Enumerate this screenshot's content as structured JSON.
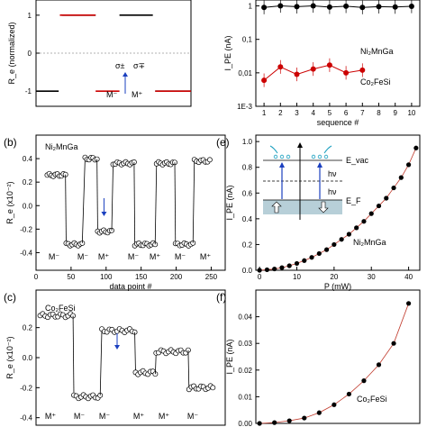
{
  "chart_data": [
    {
      "panel": "",
      "type": "line",
      "ylabel": "R_e (normalized)",
      "ylim": [
        -1.4,
        1.4
      ],
      "yticks": [
        "1",
        "0",
        "-1"
      ],
      "series": [
        {
          "color": "#000000",
          "segments": [
            [
              0,
              0.19,
              -1
            ],
            [
              0.22,
              0.5,
              1
            ],
            [
              0.7,
              0.98,
              1
            ],
            [
              1.0,
              1.3,
              -1
            ]
          ]
        },
        {
          "color": "#cc0000",
          "segments": [
            [
              0.2,
              0.5,
              1
            ],
            [
              0.5,
              0.7,
              -1
            ],
            [
              1.0,
              1.3,
              -1
            ]
          ]
        }
      ],
      "annotations": {
        "sigma_left": "σ±",
        "sigma_right": "σ∓",
        "m_minus": "M⁻",
        "m_plus": "M⁺"
      }
    },
    {
      "panel": "",
      "type": "scatter",
      "xlabel": "sequence #",
      "ylabel": "I_PE (nA)",
      "yscale": "log",
      "ylim": [
        0.001,
        1.5
      ],
      "yticks": [
        "1",
        "0,1",
        "0,01",
        "1E-3"
      ],
      "xticks": [
        "1",
        "2",
        "3",
        "4",
        "5",
        "6",
        "7",
        "8",
        "9",
        "10"
      ],
      "series": [
        {
          "name": "Ni₂MnGa",
          "color": "#000000",
          "x": [
            1,
            2,
            3,
            4,
            5,
            6,
            7,
            8,
            9,
            10
          ],
          "y": [
            0.9,
            1.0,
            0.95,
            1.0,
            0.92,
            0.98,
            0.9,
            0.95,
            0.93,
            0.97
          ]
        },
        {
          "name": "Co₂FeSi",
          "color": "#cc0000",
          "x": [
            1,
            2,
            3,
            4,
            5,
            6,
            7
          ],
          "y": [
            0.006,
            0.015,
            0.009,
            0.013,
            0.017,
            0.01,
            0.012
          ]
        }
      ]
    },
    {
      "panel": "(b)",
      "type": "scatter",
      "title": "Ni₂MnGa",
      "xlabel": "data point #",
      "ylabel": "R_e (x10⁻²)",
      "xlim": [
        0,
        270
      ],
      "ylim": [
        -0.55,
        0.6
      ],
      "xticks": [
        "0",
        "50",
        "100",
        "150",
        "200",
        "250"
      ],
      "yticks": [
        "0.4",
        "0.2",
        "0.0",
        "-0.2",
        "-0.4"
      ],
      "states": [
        "M⁻",
        "M⁻",
        "M⁺",
        "M⁻",
        "M⁺",
        "M⁻",
        "M⁺"
      ],
      "levels": [
        {
          "x0": 16,
          "x1": 42,
          "y": 0.26
        },
        {
          "x0": 43,
          "x1": 66,
          "y": -0.33
        },
        {
          "x0": 70,
          "x1": 87,
          "y": 0.4
        },
        {
          "x0": 88,
          "x1": 108,
          "y": -0.22
        },
        {
          "x0": 110,
          "x1": 140,
          "y": 0.36
        },
        {
          "x0": 141,
          "x1": 170,
          "y": -0.33
        },
        {
          "x0": 172,
          "x1": 198,
          "y": 0.36
        },
        {
          "x0": 199,
          "x1": 224,
          "y": -0.33
        },
        {
          "x0": 226,
          "x1": 248,
          "y": 0.38
        }
      ]
    },
    {
      "panel": "(c)",
      "type": "scatter",
      "title": "Co₂FeSi",
      "ylabel": "R_e (x10⁻²)",
      "ylim": [
        -0.45,
        0.45
      ],
      "yticks": [
        "0.2",
        "0.0",
        "-0.2",
        "-0.4"
      ],
      "states": [
        "M⁺",
        "M⁻",
        "M⁻",
        "M⁺",
        "M⁺",
        "M⁻"
      ],
      "levels": [
        {
          "x0": 5,
          "x1": 45,
          "y": 0.28
        },
        {
          "x0": 46,
          "x1": 78,
          "y": -0.26
        },
        {
          "x0": 80,
          "x1": 120,
          "y": 0.18
        },
        {
          "x0": 121,
          "x1": 145,
          "y": -0.1
        },
        {
          "x0": 146,
          "x1": 185,
          "y": 0.04
        },
        {
          "x0": 186,
          "x1": 215,
          "y": -0.2
        }
      ]
    },
    {
      "panel": "(e)",
      "type": "scatter",
      "xlabel": "P (mW)",
      "ylabel": "I_PE (nA)",
      "xlim": [
        -1,
        43
      ],
      "ylim": [
        0,
        1.05
      ],
      "xticks": [
        "0",
        "10",
        "20",
        "30",
        "40"
      ],
      "yticks": [
        "0.0",
        "0.2",
        "0.4",
        "0.6",
        "0.8",
        "1.0"
      ],
      "series": [
        {
          "name": "Ni₂MnGa",
          "color": "#000000",
          "x": [
            0,
            2,
            4,
            6,
            8,
            10,
            12,
            14,
            16,
            18,
            20,
            22,
            24,
            26,
            28,
            30,
            32,
            34,
            36,
            38,
            40,
            42
          ],
          "y": [
            0.0,
            0.004,
            0.01,
            0.02,
            0.035,
            0.053,
            0.075,
            0.1,
            0.13,
            0.16,
            0.2,
            0.24,
            0.28,
            0.33,
            0.38,
            0.44,
            0.5,
            0.56,
            0.64,
            0.72,
            0.82,
            0.95
          ]
        }
      ],
      "inset_labels": {
        "evac": "E_vac",
        "ef": "E_F",
        "hv1": "hν",
        "hv2": "hν"
      }
    },
    {
      "panel": "(f)",
      "type": "scatter",
      "ylabel": "I_PE (nA)",
      "xlim": [
        -1,
        43
      ],
      "ylim": [
        0,
        0.05
      ],
      "yticks": [
        "0.00",
        "0.01",
        "0.02",
        "0.03",
        "0.04"
      ],
      "series": [
        {
          "name": "Co₂FeSi",
          "color": "#000000",
          "x": [
            0,
            4,
            8,
            12,
            16,
            20,
            24,
            28,
            32,
            36,
            40
          ],
          "y": [
            0.0,
            0.0003,
            0.001,
            0.002,
            0.004,
            0.007,
            0.011,
            0.016,
            0.022,
            0.03,
            0.045
          ]
        }
      ]
    }
  ]
}
